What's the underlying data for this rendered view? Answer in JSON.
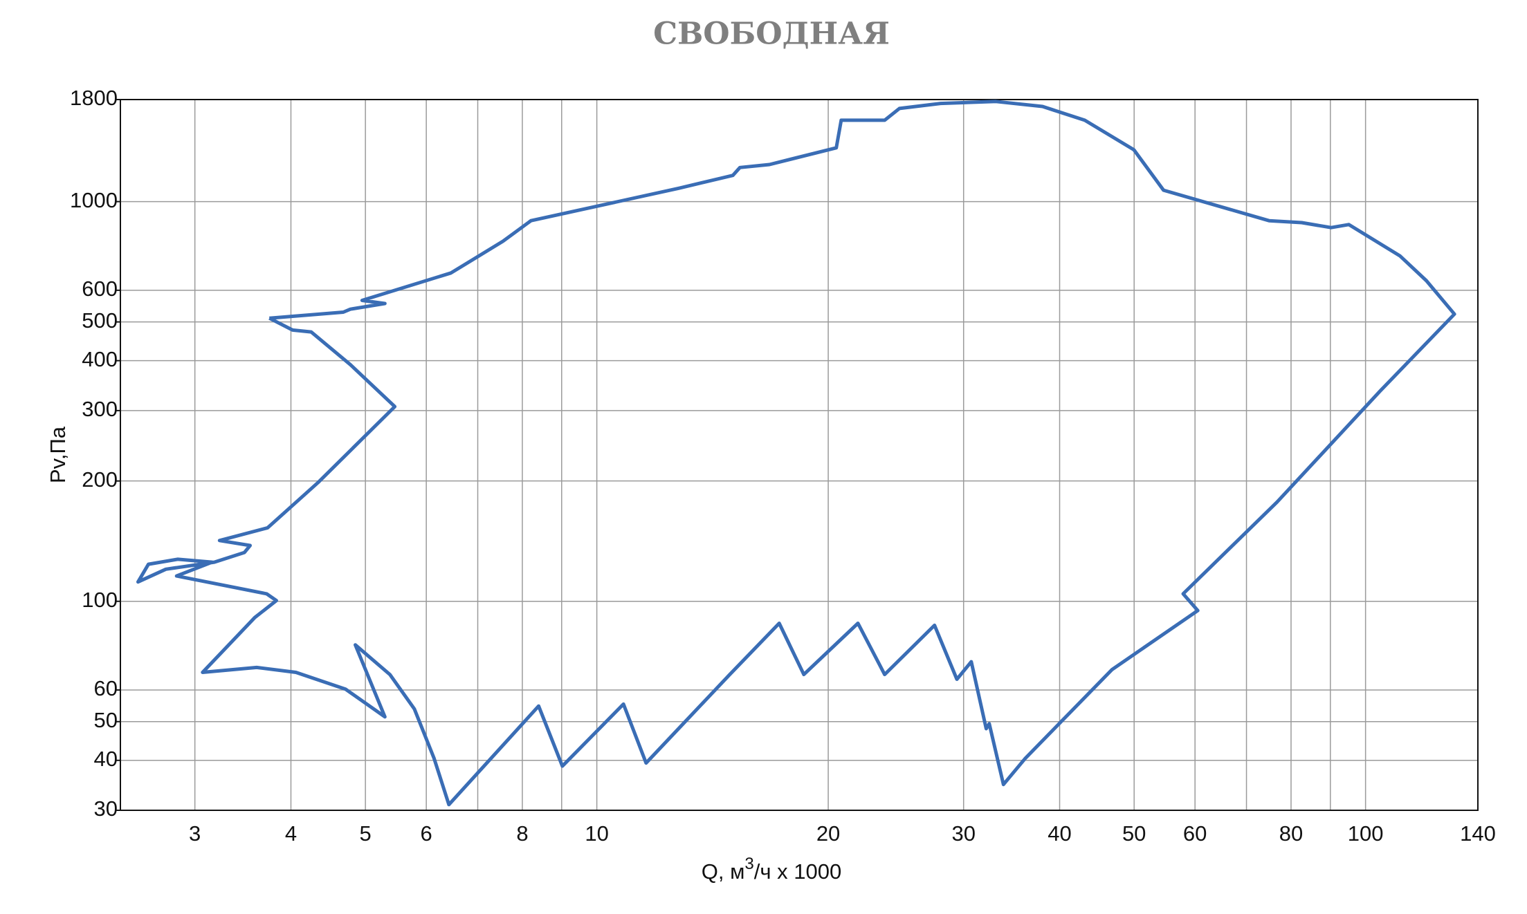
{
  "chart_data": {
    "type": "line",
    "title": "СВОБОДНАЯ",
    "xlabel": {
      "text": "Q, м",
      "sup": "3",
      "rest": "/ч x 1000"
    },
    "ylabel": "Pv,Па",
    "xscale": "log",
    "yscale": "log",
    "grid": true,
    "color": "#3a6db5",
    "xlim": [
      2.4,
      140
    ],
    "ylim": [
      30,
      1800
    ],
    "xticks": [
      3,
      4,
      5,
      6,
      8,
      10,
      20,
      30,
      40,
      50,
      60,
      80,
      100,
      140
    ],
    "xminor": [
      7,
      9,
      70,
      90
    ],
    "yticks": [
      30,
      40,
      50,
      60,
      100,
      200,
      300,
      400,
      500,
      600,
      1000,
      1800
    ],
    "x": [
      3.75,
      4.68,
      4.78,
      5.3,
      4.95,
      6.46,
      7.55,
      8.21,
      12.78,
      15.03,
      15.35,
      16.77,
      20.49,
      20.79,
      23.68,
      24.75,
      28,
      33.05,
      38,
      43.12,
      49.96,
      54.6,
      74.9,
      82.6,
      90.2,
      95.1,
      110.9,
      120,
      130.5,
      104.5,
      76.7,
      57.9,
      60.5,
      46.8,
      36.1,
      33.8,
      32.4,
      32.1,
      30.7,
      29.4,
      27.5,
      23.68,
      21.86,
      18.59,
      17.27,
      14.89,
      12.85,
      11.59,
      10.83,
      9.02,
      8.4,
      6.42,
      6.14,
      5.79,
      5.38,
      4.85,
      5.3,
      4.71,
      4.06,
      3.61,
      3.07,
      3.59,
      3.83,
      3.72,
      2.84,
      3.16,
      2.85,
      2.61,
      2.53,
      2.75,
      3.18,
      3.48,
      3.54,
      3.23,
      3.73,
      4.34,
      5.46,
      4.78,
      4.25,
      4.02,
      3.75
    ],
    "values": [
      511,
      529,
      538,
      556,
      566,
      663,
      796,
      896,
      1080,
      1163,
      1217,
      1238,
      1363,
      1598,
      1598,
      1710,
      1760,
      1780,
      1730,
      1598,
      1348,
      1068,
      896,
      886,
      861,
      876,
      731,
      634,
      523,
      336,
      177,
      104.4,
      94.8,
      67.5,
      40.5,
      34.8,
      49.4,
      48.0,
      70.6,
      63.8,
      87.1,
      65.6,
      88.1,
      65.6,
      88.1,
      65.6,
      48.6,
      39.4,
      55.3,
      38.7,
      54.7,
      31.0,
      40.5,
      53.8,
      65.6,
      77.8,
      51.4,
      60.3,
      66.4,
      68.3,
      66.4,
      91.1,
      100.4,
      104.4,
      115.7,
      125.3,
      127.4,
      123.8,
      111.8,
      120.3,
      125.3,
      132.5,
      137.9,
      141.9,
      152.7,
      198.3,
      307,
      391,
      472,
      477,
      511
    ]
  }
}
